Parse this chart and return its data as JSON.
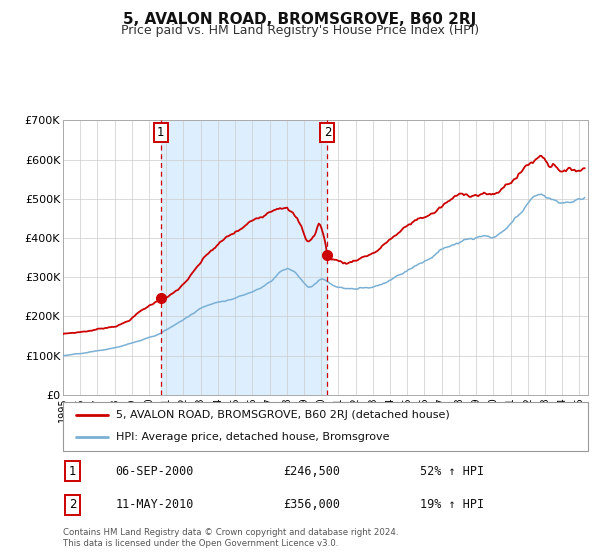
{
  "title": "5, AVALON ROAD, BROMSGROVE, B60 2RJ",
  "subtitle": "Price paid vs. HM Land Registry's House Price Index (HPI)",
  "ylim": [
    0,
    700000
  ],
  "yticks": [
    0,
    100000,
    200000,
    300000,
    400000,
    500000,
    600000,
    700000
  ],
  "ytick_labels": [
    "£0",
    "£100K",
    "£200K",
    "£300K",
    "£400K",
    "£500K",
    "£600K",
    "£700K"
  ],
  "xlim_start": 1995.0,
  "xlim_end": 2025.5,
  "xtick_years": [
    1995,
    1996,
    1997,
    1998,
    1999,
    2000,
    2001,
    2002,
    2003,
    2004,
    2005,
    2006,
    2007,
    2008,
    2009,
    2010,
    2011,
    2012,
    2013,
    2014,
    2015,
    2016,
    2017,
    2018,
    2019,
    2020,
    2021,
    2022,
    2023,
    2024,
    2025
  ],
  "sale1_x": 2000.68,
  "sale1_y": 246500,
  "sale2_x": 2010.36,
  "sale2_y": 356000,
  "red_color": "#cc0000",
  "blue_color": "#7ab0d4",
  "shade_color": "#ddeeff",
  "legend1": "5, AVALON ROAD, BROMSGROVE, B60 2RJ (detached house)",
  "legend2": "HPI: Average price, detached house, Bromsgrove",
  "sale1_date": "06-SEP-2000",
  "sale1_price": "£246,500",
  "sale1_hpi": "52% ↑ HPI",
  "sale2_date": "11-MAY-2010",
  "sale2_price": "£356,000",
  "sale2_hpi": "19% ↑ HPI",
  "footer": "Contains HM Land Registry data © Crown copyright and database right 2024.\nThis data is licensed under the Open Government Licence v3.0."
}
